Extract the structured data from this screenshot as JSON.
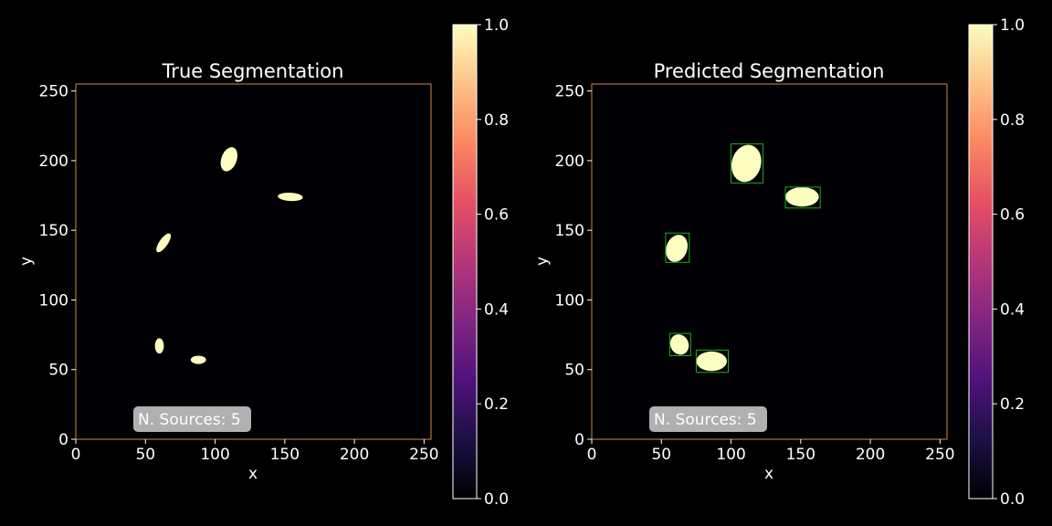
{
  "figure": {
    "background": "#000000",
    "text_color": "#ffffff"
  },
  "chart_data": [
    {
      "type": "heatmap",
      "title": "True Segmentation",
      "xlabel": "x",
      "ylabel": "y",
      "xlim": [
        0,
        255
      ],
      "ylim": [
        0,
        255
      ],
      "x_ticks": [
        0,
        50,
        100,
        150,
        200,
        250
      ],
      "y_ticks": [
        0,
        50,
        100,
        150,
        200,
        250
      ],
      "frame_color": "#d08a3a",
      "annotation": "N. Sources: 5",
      "colorbar": {
        "colormap": "magma",
        "range": [
          0.0,
          1.0
        ],
        "ticks": [
          "0.0",
          "0.2",
          "0.4",
          "0.6",
          "0.8",
          "1.0"
        ]
      },
      "mask_color": "#fcfdbf",
      "sources": [
        {
          "cx": 110,
          "cy": 201,
          "rx": 5.5,
          "ry": 9,
          "angle": 20
        },
        {
          "cx": 154,
          "cy": 174,
          "rx": 9,
          "ry": 3,
          "angle": 3
        },
        {
          "cx": 63,
          "cy": 141,
          "rx": 3,
          "ry": 8,
          "angle": 35
        },
        {
          "cx": 60,
          "cy": 67,
          "rx": 3.2,
          "ry": 5.5,
          "angle": 0
        },
        {
          "cx": 88,
          "cy": 57,
          "rx": 5.5,
          "ry": 3,
          "angle": 0
        }
      ],
      "boxes": []
    },
    {
      "type": "heatmap",
      "title": "Predicted Segmentation",
      "xlabel": "x",
      "ylabel": "y",
      "xlim": [
        0,
        255
      ],
      "ylim": [
        0,
        255
      ],
      "x_ticks": [
        0,
        50,
        100,
        150,
        200,
        250
      ],
      "y_ticks": [
        0,
        50,
        100,
        150,
        200,
        250
      ],
      "frame_color": "#d08a3a",
      "annotation": "N. Sources: 5",
      "colorbar": {
        "colormap": "magma",
        "range": [
          0.0,
          1.0
        ],
        "ticks": [
          "0.0",
          "0.2",
          "0.4",
          "0.6",
          "0.8",
          "1.0"
        ]
      },
      "mask_color": "#fcfdbf",
      "box_color": "#22aa22",
      "sources": [
        {
          "cx": 111,
          "cy": 198,
          "rx": 10.5,
          "ry": 13.5,
          "angle": 15
        },
        {
          "cx": 151,
          "cy": 174,
          "rx": 12,
          "ry": 7,
          "angle": 0
        },
        {
          "cx": 61,
          "cy": 137,
          "rx": 7.5,
          "ry": 10,
          "angle": 20
        },
        {
          "cx": 63,
          "cy": 68,
          "rx": 6.5,
          "ry": 7.5,
          "angle": -25
        },
        {
          "cx": 86,
          "cy": 56,
          "rx": 11,
          "ry": 7,
          "angle": 0
        }
      ],
      "boxes": [
        {
          "x0": 100,
          "x1": 123,
          "y0": 184,
          "y1": 212
        },
        {
          "x0": 139,
          "x1": 164,
          "y0": 166,
          "y1": 181
        },
        {
          "x0": 53,
          "x1": 70,
          "y0": 127,
          "y1": 148
        },
        {
          "x0": 56,
          "x1": 71,
          "y0": 60,
          "y1": 76
        },
        {
          "x0": 75,
          "x1": 98,
          "y0": 48,
          "y1": 64
        }
      ]
    }
  ]
}
